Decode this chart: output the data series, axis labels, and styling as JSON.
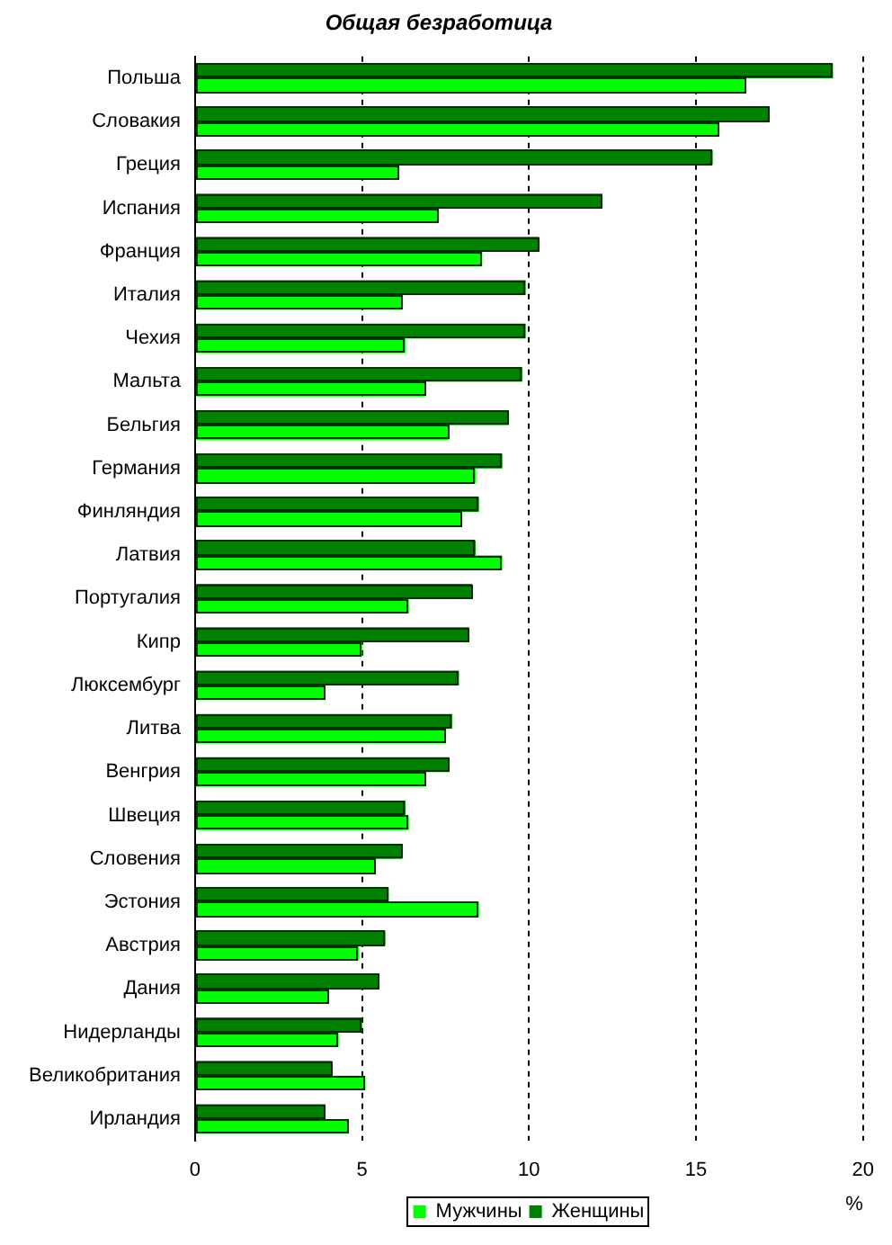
{
  "chart_data": {
    "type": "bar",
    "orientation": "horizontal",
    "title": "Общая безработица",
    "xlabel": "%",
    "categories": [
      "Польша",
      "Словакия",
      "Греция",
      "Испания",
      "Франция",
      "Италия",
      "Чехия",
      "Мальта",
      "Бельгия",
      "Германия",
      "Финляндия",
      "Латвия",
      "Португалия",
      "Кипр",
      "Люксембург",
      "Литва",
      "Венгрия",
      "Швеция",
      "Словения",
      "Эстония",
      "Австрия",
      "Дания",
      "Нидерланды",
      "Великобритания",
      "Ирландия"
    ],
    "series": [
      {
        "name": "Женщины",
        "color": "#008000",
        "values": [
          19.1,
          17.2,
          15.5,
          12.2,
          10.3,
          9.9,
          9.9,
          9.8,
          9.4,
          9.2,
          8.5,
          8.4,
          8.3,
          8.2,
          7.9,
          7.7,
          7.6,
          6.3,
          6.2,
          5.8,
          5.7,
          5.5,
          5.0,
          4.1,
          3.9
        ]
      },
      {
        "name": "Мужчины",
        "color": "#00ff00",
        "values": [
          16.5,
          15.7,
          6.1,
          7.3,
          8.6,
          6.2,
          6.3,
          6.9,
          7.6,
          8.4,
          8.0,
          9.2,
          6.4,
          5.0,
          3.9,
          7.5,
          6.9,
          6.4,
          5.4,
          8.5,
          4.9,
          4.0,
          4.3,
          5.1,
          4.6
        ]
      }
    ],
    "xlim": [
      0,
      20
    ],
    "xticks": [
      0,
      5,
      10,
      15,
      20
    ],
    "grid": "x",
    "legend": "bottom"
  }
}
